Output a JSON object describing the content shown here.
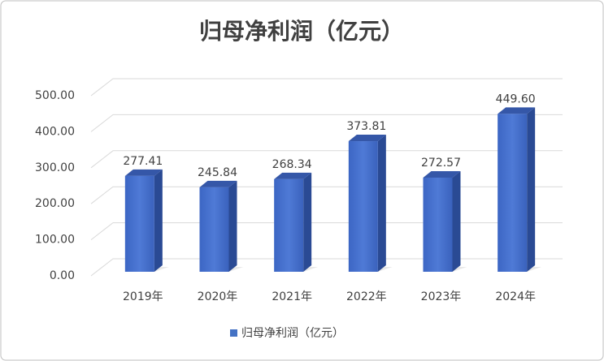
{
  "chart_data": {
    "type": "bar3d",
    "title": "归母净利润（亿元）",
    "categories": [
      "2019年",
      "2020年",
      "2021年",
      "2022年",
      "2023年",
      "2024年"
    ],
    "series": [
      {
        "name": "归母净利润（亿元）",
        "color": "#4472c4",
        "values": [
          277.41,
          245.84,
          268.34,
          373.81,
          272.57,
          449.6
        ],
        "value_labels": [
          "277.41",
          "245.84",
          "268.34",
          "373.81",
          "272.57",
          "449.60"
        ]
      }
    ],
    "ylim": [
      0,
      500
    ],
    "yticks": [
      {
        "value": 0,
        "label": "0.00"
      },
      {
        "value": 100,
        "label": "100.00"
      },
      {
        "value": 200,
        "label": "200.00"
      },
      {
        "value": 300,
        "label": "300.00"
      },
      {
        "value": 400,
        "label": "400.00"
      },
      {
        "value": 500,
        "label": "500.00"
      }
    ],
    "grid": true,
    "legend": "bottom"
  }
}
